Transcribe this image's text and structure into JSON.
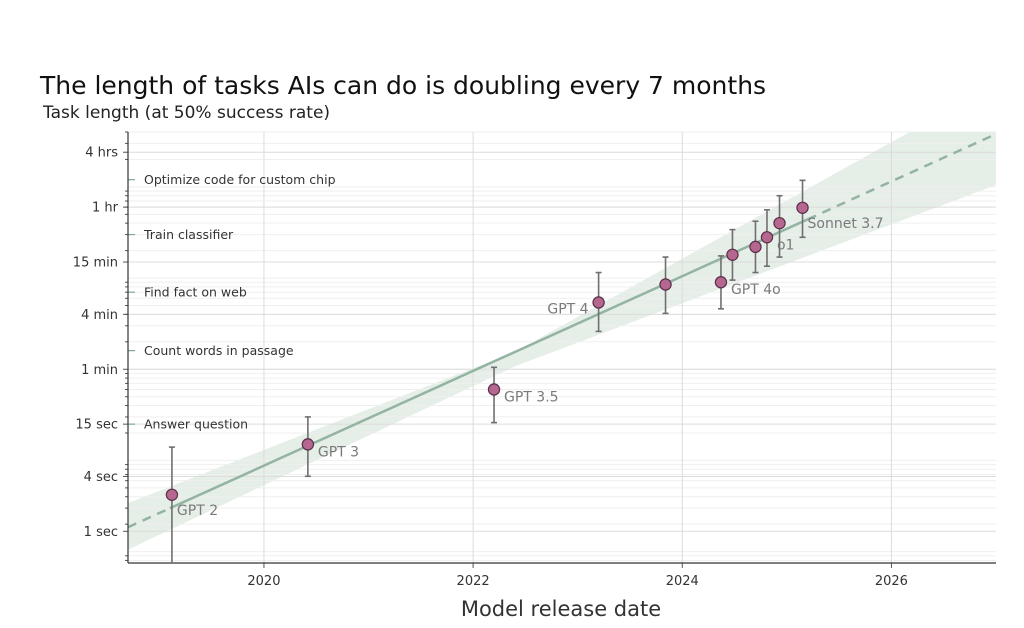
{
  "chart_data": {
    "type": "scatter",
    "title": "The length of tasks AIs can do is doubling every 7 months",
    "ylabel": "Task length (at 50% success rate)",
    "xlabel": "Model release date",
    "y_scale": "log",
    "y_unit": "minutes",
    "xlim": [
      2018.7,
      2027.0
    ],
    "ylim_minutes": [
      0.0075,
      400
    ],
    "x_ticks": [
      {
        "value": 2020,
        "label": "2020"
      },
      {
        "value": 2022,
        "label": "2022"
      },
      {
        "value": 2024,
        "label": "2024"
      },
      {
        "value": 2026,
        "label": "2026"
      }
    ],
    "y_ticks": [
      {
        "minutes": 240,
        "label": "4 hrs"
      },
      {
        "minutes": 60,
        "label": "1 hr"
      },
      {
        "minutes": 15,
        "label": "15 min"
      },
      {
        "minutes": 4,
        "label": "4 min"
      },
      {
        "minutes": 1,
        "label": "1 min"
      },
      {
        "minutes": 0.25,
        "label": "15 sec"
      },
      {
        "minutes": 0.0667,
        "label": "4 sec"
      },
      {
        "minutes": 0.0167,
        "label": "1 sec"
      }
    ],
    "task_examples": [
      {
        "label": "Optimize code for custom chip",
        "minutes": 120
      },
      {
        "label": "Train classifier",
        "minutes": 30
      },
      {
        "label": "Find fact on web",
        "minutes": 7
      },
      {
        "label": "Count words in passage",
        "minutes": 1.6
      },
      {
        "label": "Answer question",
        "minutes": 0.25
      }
    ],
    "points": [
      {
        "label": "GPT 2",
        "x": 2019.12,
        "y": 0.042,
        "lo": 0.0075,
        "hi": 0.14,
        "label_pos": "below-right"
      },
      {
        "label": "GPT 3",
        "x": 2020.42,
        "y": 0.15,
        "lo": 0.067,
        "hi": 0.3,
        "label_pos": "right"
      },
      {
        "label": "GPT 3.5",
        "x": 2022.2,
        "y": 0.6,
        "lo": 0.26,
        "hi": 1.05,
        "label_pos": "right"
      },
      {
        "label": "GPT 4",
        "x": 2023.2,
        "y": 5.4,
        "lo": 2.6,
        "hi": 11.5,
        "label_pos": "left"
      },
      {
        "label": "",
        "x": 2023.84,
        "y": 8.5,
        "lo": 4.1,
        "hi": 17.0,
        "label_pos": "none"
      },
      {
        "label": "GPT 4o",
        "x": 2024.37,
        "y": 9.0,
        "lo": 4.6,
        "hi": 17.5,
        "label_pos": "right"
      },
      {
        "label": "",
        "x": 2024.48,
        "y": 18.0,
        "lo": 9.5,
        "hi": 34.0,
        "label_pos": "none"
      },
      {
        "label": "",
        "x": 2024.7,
        "y": 22.0,
        "lo": 11.5,
        "hi": 42.0,
        "label_pos": "none"
      },
      {
        "label": "o1",
        "x": 2024.81,
        "y": 28.0,
        "lo": 13.5,
        "hi": 56.0,
        "label_pos": "right"
      },
      {
        "label": "",
        "x": 2024.93,
        "y": 40.0,
        "lo": 17.0,
        "hi": 80.0,
        "label_pos": "none"
      },
      {
        "label": "Sonnet 3.7",
        "x": 2025.15,
        "y": 59.0,
        "lo": 28.0,
        "hi": 118.0,
        "label_pos": "below-right"
      }
    ],
    "trend": {
      "doubling_months": 7,
      "solid_range": [
        2019.1,
        2025.2
      ],
      "dashed_ranges": [
        [
          2018.7,
          2019.1
        ],
        [
          2025.2,
          2027.0
        ]
      ],
      "start": {
        "x": 2018.7,
        "y": 0.0185
      },
      "end": {
        "x": 2027.0,
        "y": 380
      },
      "band": [
        {
          "x": 2018.7,
          "lo": 0.0105,
          "hi": 0.034
        },
        {
          "x": 2022.4,
          "lo": 1.08,
          "hi": 1.55
        },
        {
          "x": 2027.0,
          "lo": 105,
          "hi": 1350
        }
      ]
    }
  }
}
